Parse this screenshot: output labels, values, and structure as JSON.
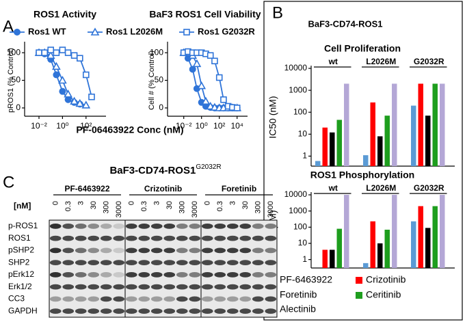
{
  "panel_labels": [
    "A",
    "B",
    "C"
  ],
  "panel_b_title": "BaF3-CD74-ROS1",
  "chart_data": [
    {
      "type": "line",
      "title": "ROS1 Activity",
      "ylabel": "pROS1 (% Control)",
      "xlabel": "PF-06463922 Conc (nM)",
      "xscale": "log",
      "x": [
        0.01,
        0.03,
        0.1,
        0.3,
        1,
        3,
        10,
        30,
        100,
        300
      ],
      "xlim": [
        0.0006,
        5000
      ],
      "xticks": [
        {
          "value": 0.01,
          "label": "10⁻²"
        },
        {
          "value": 1,
          "label": "10⁰"
        },
        {
          "value": 100,
          "label": "10²"
        }
      ],
      "ylim": [
        -15,
        115
      ],
      "yticks": [
        0,
        50,
        100
      ],
      "legend": "top",
      "series": [
        {
          "name": "Ros1 WT",
          "color": "#2f74d8",
          "marker": "circle",
          "values": [
            100,
            98,
            88,
            60,
            30,
            15,
            10,
            7,
            null,
            null
          ]
        },
        {
          "name": "Ros1 L2026M",
          "color": "#2f74d8",
          "marker": "triangle",
          "values": [
            100,
            100,
            95,
            75,
            50,
            25,
            12,
            8,
            5,
            null
          ]
        },
        {
          "name": "Ros1 G2032R",
          "color": "#2f74d8",
          "marker": "square",
          "values": [
            100,
            100,
            105,
            100,
            105,
            100,
            95,
            90,
            60,
            20
          ]
        }
      ]
    },
    {
      "type": "line",
      "title": "BaF3 ROS1 Cell Viability",
      "ylabel": "Cell # (% Control)",
      "xscale": "log",
      "x": [
        0.01,
        0.03,
        0.1,
        0.3,
        1,
        3,
        10,
        30,
        100,
        300,
        1000,
        3000,
        10000
      ],
      "xlim": [
        0.00015,
        150000
      ],
      "xticks": [
        {
          "value": 0.01,
          "label": "10⁻²"
        },
        {
          "value": 1,
          "label": "10⁰"
        },
        {
          "value": 100,
          "label": "10²"
        },
        {
          "value": 10000,
          "label": "10⁴"
        }
      ],
      "ylim": [
        -15,
        115
      ],
      "yticks": [
        0,
        50,
        100
      ],
      "series": [
        {
          "color": "#2f74d8",
          "marker": "circle",
          "values": [
            100,
            90,
            70,
            35,
            10,
            3,
            1,
            0,
            0,
            0,
            0,
            0,
            0
          ]
        },
        {
          "color": "#2f74d8",
          "marker": "triangle",
          "values": [
            100,
            100,
            95,
            80,
            40,
            12,
            3,
            1,
            0,
            0,
            0,
            0,
            0
          ]
        },
        {
          "color": "#2f74d8",
          "marker": "square",
          "values": [
            100,
            102,
            100,
            100,
            100,
            98,
            95,
            85,
            55,
            15,
            3,
            1,
            0
          ]
        }
      ]
    },
    {
      "type": "bar",
      "title": "Cell Proliferation",
      "ylabel": "IC50 (nM)",
      "yscale": "log",
      "categories": [
        "wt",
        "L2026M",
        "G2032R"
      ],
      "ylim": [
        0.35,
        10000
      ],
      "yticks": [
        1,
        10,
        100,
        1000,
        10000
      ],
      "series": [
        {
          "color": "#5b9bd5",
          "values": [
            0.6,
            1.1,
            200
          ]
        },
        {
          "color": "#ff0000",
          "values": [
            20,
            280,
            2000
          ]
        },
        {
          "color": "#000000",
          "values": [
            12,
            8,
            70
          ]
        },
        {
          "color": "#1e9e1e",
          "values": [
            45,
            70,
            2000
          ]
        },
        {
          "color": "#b4a7d6",
          "values": [
            2000,
            2000,
            2000
          ]
        }
      ]
    },
    {
      "type": "bar",
      "title": "ROS1 Phosphorylation",
      "ylabel": "IC50 (nM)",
      "yscale": "log",
      "categories": [
        "wt",
        "L2026M",
        "G2032R"
      ],
      "ylim": [
        0.3,
        10000
      ],
      "yticks": [
        1,
        10,
        100,
        1000,
        10000
      ],
      "legend": "bottom",
      "series": [
        {
          "name": "PF-6463922",
          "color": "#5b9bd5",
          "values": [
            0.3,
            0.6,
            230
          ]
        },
        {
          "name": "Crizotinib",
          "color": "#ff0000",
          "values": [
            4,
            230,
            2000
          ]
        },
        {
          "name": "Foretinib",
          "color": "#000000",
          "values": [
            4,
            10,
            90
          ]
        },
        {
          "name": "Ceritinib",
          "color": "#1e9e1e",
          "values": [
            80,
            70,
            2000
          ]
        },
        {
          "name": "Alectinib",
          "color": "#b4a7d6",
          "values": [
            10000,
            10000,
            10000
          ]
        }
      ]
    }
  ],
  "blot": {
    "title": "BaF3-CD74-ROS1",
    "title_superscript": "G2032R",
    "dose_unit": "[nM]",
    "drugs": [
      "PF-6463922",
      "Crizotinib",
      "Foretinib"
    ],
    "doses": [
      "0",
      "0.3",
      "3",
      "30",
      "300",
      "3000"
    ],
    "rows": [
      "p-ROS1",
      "ROS1",
      "pSHP2",
      "SHP2",
      "pErk12",
      "Erk1/2",
      "CC3",
      "GAPDH"
    ]
  }
}
